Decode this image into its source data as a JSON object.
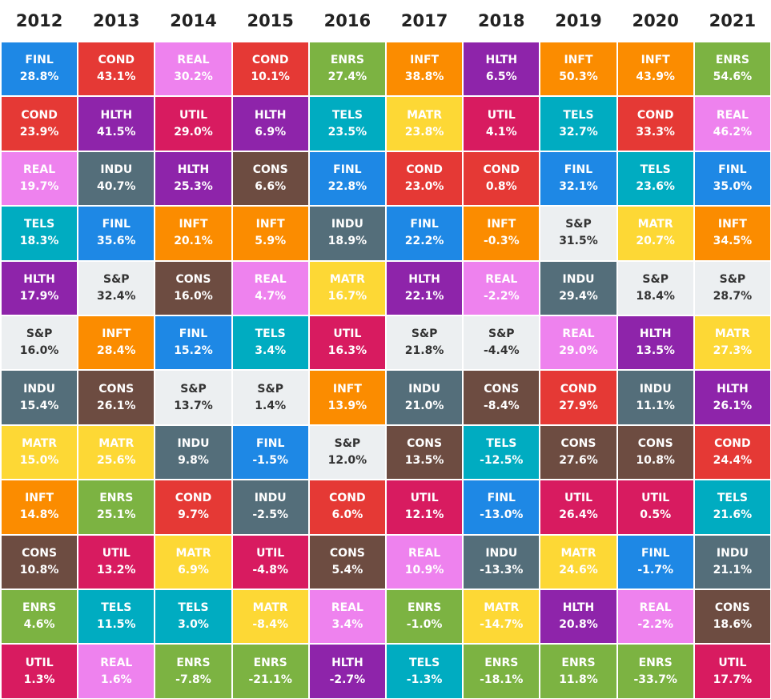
{
  "chart_data": {
    "type": "table",
    "years": [
      "2012",
      "2013",
      "2014",
      "2015",
      "2016",
      "2017",
      "2018",
      "2019",
      "2020",
      "2021"
    ],
    "columns": [
      [
        [
          "FINL",
          "28.8%"
        ],
        [
          "COND",
          "23.9%"
        ],
        [
          "REAL",
          "19.7%"
        ],
        [
          "TELS",
          "18.3%"
        ],
        [
          "HLTH",
          "17.9%"
        ],
        [
          "S&P",
          "16.0%"
        ],
        [
          "INDU",
          "15.4%"
        ],
        [
          "MATR",
          "15.0%"
        ],
        [
          "INFT",
          "14.8%"
        ],
        [
          "CONS",
          "10.8%"
        ],
        [
          "ENRS",
          "4.6%"
        ],
        [
          "UTIL",
          "1.3%"
        ]
      ],
      [
        [
          "COND",
          "43.1%"
        ],
        [
          "HLTH",
          "41.5%"
        ],
        [
          "INDU",
          "40.7%"
        ],
        [
          "FINL",
          "35.6%"
        ],
        [
          "S&P",
          "32.4%"
        ],
        [
          "INFT",
          "28.4%"
        ],
        [
          "CONS",
          "26.1%"
        ],
        [
          "MATR",
          "25.6%"
        ],
        [
          "ENRS",
          "25.1%"
        ],
        [
          "UTIL",
          "13.2%"
        ],
        [
          "TELS",
          "11.5%"
        ],
        [
          "REAL",
          "1.6%"
        ]
      ],
      [
        [
          "REAL",
          "30.2%"
        ],
        [
          "UTIL",
          "29.0%"
        ],
        [
          "HLTH",
          "25.3%"
        ],
        [
          "INFT",
          "20.1%"
        ],
        [
          "CONS",
          "16.0%"
        ],
        [
          "FINL",
          "15.2%"
        ],
        [
          "S&P",
          "13.7%"
        ],
        [
          "INDU",
          "9.8%"
        ],
        [
          "COND",
          "9.7%"
        ],
        [
          "MATR",
          "6.9%"
        ],
        [
          "TELS",
          "3.0%"
        ],
        [
          "ENRS",
          "-7.8%"
        ]
      ],
      [
        [
          "COND",
          "10.1%"
        ],
        [
          "HLTH",
          "6.9%"
        ],
        [
          "CONS",
          "6.6%"
        ],
        [
          "INFT",
          "5.9%"
        ],
        [
          "REAL",
          "4.7%"
        ],
        [
          "TELS",
          "3.4%"
        ],
        [
          "S&P",
          "1.4%"
        ],
        [
          "FINL",
          "-1.5%"
        ],
        [
          "INDU",
          "-2.5%"
        ],
        [
          "UTIL",
          "-4.8%"
        ],
        [
          "MATR",
          "-8.4%"
        ],
        [
          "ENRS",
          "-21.1%"
        ]
      ],
      [
        [
          "ENRS",
          "27.4%"
        ],
        [
          "TELS",
          "23.5%"
        ],
        [
          "FINL",
          "22.8%"
        ],
        [
          "INDU",
          "18.9%"
        ],
        [
          "MATR",
          "16.7%"
        ],
        [
          "UTIL",
          "16.3%"
        ],
        [
          "INFT",
          "13.9%"
        ],
        [
          "S&P",
          "12.0%"
        ],
        [
          "COND",
          "6.0%"
        ],
        [
          "CONS",
          "5.4%"
        ],
        [
          "REAL",
          "3.4%"
        ],
        [
          "HLTH",
          "-2.7%"
        ]
      ],
      [
        [
          "INFT",
          "38.8%"
        ],
        [
          "MATR",
          "23.8%"
        ],
        [
          "COND",
          "23.0%"
        ],
        [
          "FINL",
          "22.2%"
        ],
        [
          "HLTH",
          "22.1%"
        ],
        [
          "S&P",
          "21.8%"
        ],
        [
          "INDU",
          "21.0%"
        ],
        [
          "CONS",
          "13.5%"
        ],
        [
          "UTIL",
          "12.1%"
        ],
        [
          "REAL",
          "10.9%"
        ],
        [
          "ENRS",
          "-1.0%"
        ],
        [
          "TELS",
          "-1.3%"
        ]
      ],
      [
        [
          "HLTH",
          "6.5%"
        ],
        [
          "UTIL",
          "4.1%"
        ],
        [
          "COND",
          "0.8%"
        ],
        [
          "INFT",
          "-0.3%"
        ],
        [
          "REAL",
          "-2.2%"
        ],
        [
          "S&P",
          "-4.4%"
        ],
        [
          "CONS",
          "-8.4%"
        ],
        [
          "TELS",
          "-12.5%"
        ],
        [
          "FINL",
          "-13.0%"
        ],
        [
          "INDU",
          "-13.3%"
        ],
        [
          "MATR",
          "-14.7%"
        ],
        [
          "ENRS",
          "-18.1%"
        ]
      ],
      [
        [
          "INFT",
          "50.3%"
        ],
        [
          "TELS",
          "32.7%"
        ],
        [
          "FINL",
          "32.1%"
        ],
        [
          "S&P",
          "31.5%"
        ],
        [
          "INDU",
          "29.4%"
        ],
        [
          "REAL",
          "29.0%"
        ],
        [
          "COND",
          "27.9%"
        ],
        [
          "CONS",
          "27.6%"
        ],
        [
          "UTIL",
          "26.4%"
        ],
        [
          "MATR",
          "24.6%"
        ],
        [
          "HLTH",
          "20.8%"
        ],
        [
          "ENRS",
          "11.8%"
        ]
      ],
      [
        [
          "INFT",
          "43.9%"
        ],
        [
          "COND",
          "33.3%"
        ],
        [
          "TELS",
          "23.6%"
        ],
        [
          "MATR",
          "20.7%"
        ],
        [
          "S&P",
          "18.4%"
        ],
        [
          "HLTH",
          "13.5%"
        ],
        [
          "INDU",
          "11.1%"
        ],
        [
          "CONS",
          "10.8%"
        ],
        [
          "UTIL",
          "0.5%"
        ],
        [
          "FINL",
          "-1.7%"
        ],
        [
          "REAL",
          "-2.2%"
        ],
        [
          "ENRS",
          "-33.7%"
        ]
      ],
      [
        [
          "ENRS",
          "54.6%"
        ],
        [
          "REAL",
          "46.2%"
        ],
        [
          "FINL",
          "35.0%"
        ],
        [
          "INFT",
          "34.5%"
        ],
        [
          "S&P",
          "28.7%"
        ],
        [
          "MATR",
          "27.3%"
        ],
        [
          "HLTH",
          "26.1%"
        ],
        [
          "COND",
          "24.4%"
        ],
        [
          "TELS",
          "21.6%"
        ],
        [
          "INDU",
          "21.1%"
        ],
        [
          "CONS",
          "18.6%"
        ],
        [
          "UTIL",
          "17.7%"
        ]
      ]
    ],
    "sector_colors": {
      "FINL": "#1e88e5",
      "COND": "#e53935",
      "REAL": "#ee82ee",
      "TELS": "#00acc1",
      "HLTH": "#8e24aa",
      "S&P": "#eceff1",
      "INDU": "#546e7a",
      "MATR": "#fdd835",
      "INFT": "#fb8c00",
      "CONS": "#6d4c41",
      "ENRS": "#7cb342",
      "UTIL": "#d81b60"
    },
    "dark_text_sectors": [
      "S&P"
    ]
  }
}
